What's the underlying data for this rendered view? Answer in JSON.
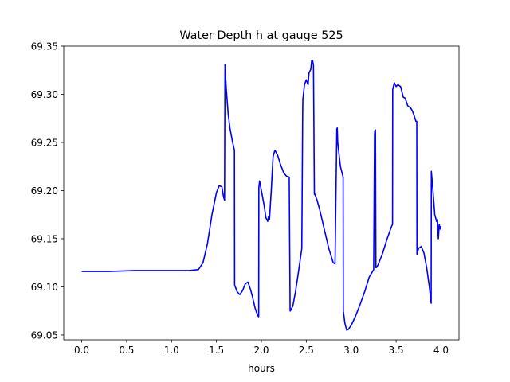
{
  "chart_data": {
    "type": "line",
    "title": "Water Depth h at gauge 525",
    "xlabel": "hours",
    "ylabel": "",
    "xlim": [
      -0.2,
      4.2
    ],
    "ylim": [
      69.045,
      69.35
    ],
    "xticks": [
      0.0,
      0.5,
      1.0,
      1.5,
      2.0,
      2.5,
      3.0,
      3.5,
      4.0
    ],
    "xtick_labels": [
      "0.0",
      "0.5",
      "1.0",
      "1.5",
      "2.0",
      "2.5",
      "3.0",
      "3.5",
      "4.0"
    ],
    "yticks": [
      69.05,
      69.1,
      69.15,
      69.2,
      69.25,
      69.3,
      69.35
    ],
    "ytick_labels": [
      "69.05",
      "69.10",
      "69.15",
      "69.20",
      "69.25",
      "69.30",
      "69.35"
    ],
    "grid": false,
    "series": [
      {
        "color": "#0000ff",
        "x": [
          0.0,
          0.3,
          0.6,
          0.9,
          1.0,
          1.1,
          1.2,
          1.3,
          1.35,
          1.4,
          1.45,
          1.5,
          1.53,
          1.56,
          1.58,
          1.59,
          1.595,
          1.6,
          1.61,
          1.63,
          1.65,
          1.68,
          1.7,
          1.702,
          1.73,
          1.76,
          1.79,
          1.82,
          1.85,
          1.88,
          1.9,
          1.93,
          1.96,
          1.97,
          1.972,
          1.98,
          2.0,
          2.03,
          2.05,
          2.07,
          2.08,
          2.09,
          2.11,
          2.13,
          2.15,
          2.18,
          2.21,
          2.25,
          2.28,
          2.31,
          2.32,
          2.322,
          2.35,
          2.38,
          2.42,
          2.45,
          2.46,
          2.462,
          2.48,
          2.5,
          2.52,
          2.53,
          2.55,
          2.56,
          2.57,
          2.58,
          2.59,
          2.592,
          2.6,
          2.62,
          2.65,
          2.7,
          2.75,
          2.8,
          2.82,
          2.84,
          2.845,
          2.85,
          2.88,
          2.91,
          2.912,
          2.93,
          2.95,
          2.97,
          3.0,
          3.05,
          3.1,
          3.15,
          3.2,
          3.25,
          3.26,
          3.262,
          3.27,
          3.275,
          3.28,
          3.3,
          3.35,
          3.4,
          3.45,
          3.46,
          3.462,
          3.48,
          3.5,
          3.52,
          3.55,
          3.58,
          3.6,
          3.63,
          3.66,
          3.68,
          3.7,
          3.72,
          3.73,
          3.732,
          3.75,
          3.78,
          3.81,
          3.84,
          3.87,
          3.89,
          3.892,
          3.91,
          3.93,
          3.95,
          3.96,
          3.97,
          3.98,
          3.99,
          4.0
        ],
        "y": [
          69.116,
          69.116,
          69.117,
          69.117,
          69.117,
          69.117,
          69.117,
          69.118,
          69.125,
          69.145,
          69.175,
          69.198,
          69.205,
          69.204,
          69.193,
          69.19,
          69.331,
          69.32,
          69.305,
          69.28,
          69.265,
          69.25,
          69.242,
          69.102,
          69.095,
          69.092,
          69.096,
          69.103,
          69.105,
          69.097,
          69.09,
          69.078,
          69.07,
          69.069,
          69.203,
          69.21,
          69.2,
          69.185,
          69.172,
          69.168,
          69.173,
          69.17,
          69.2,
          69.235,
          69.242,
          69.237,
          69.228,
          69.218,
          69.215,
          69.214,
          69.075,
          69.075,
          69.08,
          69.095,
          69.12,
          69.14,
          69.283,
          69.295,
          69.31,
          69.315,
          69.31,
          69.322,
          69.326,
          69.335,
          69.335,
          69.33,
          69.196,
          69.197,
          69.195,
          69.19,
          69.18,
          69.16,
          69.14,
          69.125,
          69.124,
          69.264,
          69.265,
          69.25,
          69.225,
          69.214,
          69.075,
          69.062,
          69.055,
          69.056,
          69.06,
          69.07,
          69.082,
          69.095,
          69.11,
          69.118,
          69.257,
          69.262,
          69.263,
          69.12,
          69.12,
          69.123,
          69.135,
          69.15,
          69.163,
          69.165,
          69.305,
          69.312,
          69.308,
          69.31,
          69.308,
          69.297,
          69.296,
          69.288,
          69.286,
          69.283,
          69.278,
          69.272,
          69.272,
          69.134,
          69.14,
          69.142,
          69.135,
          69.12,
          69.1,
          69.083,
          69.22,
          69.2,
          69.175,
          69.168,
          69.17,
          69.15,
          69.165,
          69.16,
          69.163
        ]
      }
    ]
  }
}
